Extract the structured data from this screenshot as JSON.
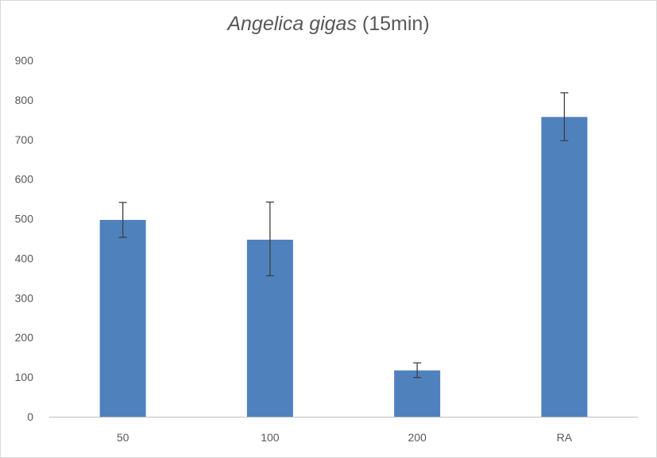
{
  "chart_data": {
    "type": "bar",
    "title": {
      "italic_part": "Angelica gigas",
      "plain_part": " (15min)"
    },
    "categories": [
      "50",
      "100",
      "200",
      "RA"
    ],
    "values": [
      497,
      447,
      117,
      757
    ],
    "error_bars": {
      "lower": [
        453,
        356,
        99,
        697
      ],
      "upper": [
        541,
        542,
        136,
        818
      ]
    },
    "y_ticks": [
      "0",
      "100",
      "200",
      "300",
      "400",
      "500",
      "600",
      "700",
      "800",
      "900"
    ],
    "ylim": [
      0,
      900
    ],
    "xlabel": "",
    "ylabel": "",
    "grid": false,
    "legend": "none",
    "colors": {
      "bar": "#4f81bd",
      "axis": "#bfbfbf",
      "error_bar": "#404040",
      "text": "#595959"
    }
  }
}
